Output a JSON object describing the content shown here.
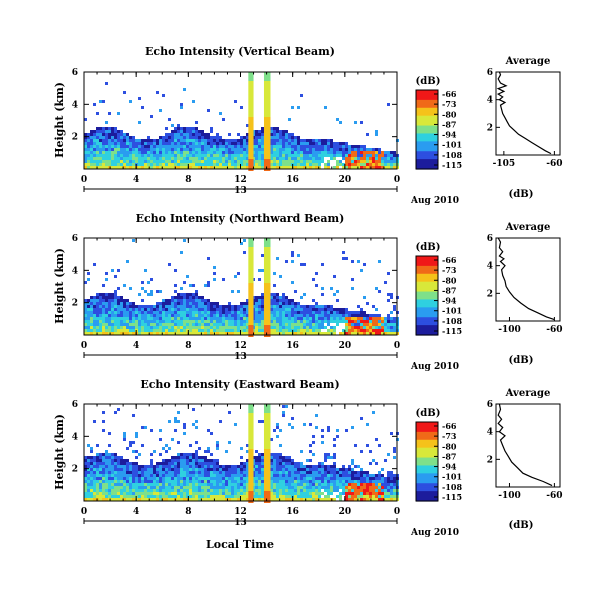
{
  "figure": {
    "xlabel": "Local Time",
    "date_label": "Aug 2010",
    "day_label": "13"
  },
  "colorbar": {
    "unit": "(dB)",
    "ticks": [
      "-66",
      "-73",
      "-80",
      "-87",
      "-94",
      "-101",
      "-108",
      "-115"
    ],
    "colors": [
      "#f01818",
      "#f06a18",
      "#f5c21a",
      "#d8e83a",
      "#7ee08a",
      "#2fd0e0",
      "#2a9cf0",
      "#2d4fe0",
      "#1c1c9c"
    ]
  },
  "chart_data": [
    {
      "type": "heatmap",
      "title": "Echo Intensity (Vertical Beam)",
      "ylabel": "Height (km)",
      "x_ticks": [
        "0",
        "4",
        "8",
        "12",
        "16",
        "20",
        "0"
      ],
      "y_ticks": [
        "6",
        "4",
        "2"
      ],
      "xlim": [
        0,
        24
      ],
      "ylim": [
        0,
        6
      ],
      "avg": {
        "title": "Average",
        "xlabel": "(dB)",
        "x_ticks": [
          "-105",
          "-60"
        ],
        "y_ticks": [
          "6",
          "4",
          "2"
        ],
        "xlim": [
          -112,
          -55
        ],
        "profile": [
          [
            -63,
            0.1
          ],
          [
            -68,
            0.3
          ],
          [
            -74,
            0.6
          ],
          [
            -80,
            0.9
          ],
          [
            -86,
            1.2
          ],
          [
            -92,
            1.5
          ],
          [
            -96,
            1.8
          ],
          [
            -100,
            2.1
          ],
          [
            -102,
            2.4
          ],
          [
            -104,
            2.7
          ],
          [
            -106,
            3.0
          ],
          [
            -107,
            3.3
          ],
          [
            -108,
            3.6
          ],
          [
            -104,
            3.8
          ],
          [
            -109,
            4.0
          ],
          [
            -106,
            4.2
          ],
          [
            -110,
            4.4
          ],
          [
            -105,
            4.6
          ],
          [
            -110,
            4.8
          ],
          [
            -103,
            5.0
          ],
          [
            -108,
            5.2
          ],
          [
            -110,
            5.5
          ],
          [
            -108,
            5.8
          ],
          [
            -109,
            6.0
          ]
        ]
      }
    },
    {
      "type": "heatmap",
      "title": "Echo Intensity (Northward Beam)",
      "ylabel": "Height (km)",
      "x_ticks": [
        "0",
        "4",
        "8",
        "12",
        "16",
        "20",
        "0"
      ],
      "y_ticks": [
        "6",
        "4",
        "2"
      ],
      "xlim": [
        0,
        24
      ],
      "ylim": [
        0,
        6
      ],
      "avg": {
        "title": "Average",
        "xlabel": "(dB)",
        "x_ticks": [
          "-100",
          "-60"
        ],
        "y_ticks": [
          "6",
          "4",
          "2"
        ],
        "xlim": [
          -112,
          -55
        ],
        "profile": [
          [
            -60,
            0.1
          ],
          [
            -67,
            0.3
          ],
          [
            -75,
            0.6
          ],
          [
            -83,
            0.9
          ],
          [
            -90,
            1.3
          ],
          [
            -96,
            1.7
          ],
          [
            -100,
            2.1
          ],
          [
            -103,
            2.5
          ],
          [
            -104,
            2.9
          ],
          [
            -106,
            3.3
          ],
          [
            -107,
            3.7
          ],
          [
            -104,
            4.0
          ],
          [
            -108,
            4.3
          ],
          [
            -105,
            4.5
          ],
          [
            -109,
            4.7
          ],
          [
            -106,
            5.0
          ],
          [
            -109,
            5.3
          ],
          [
            -108,
            5.7
          ],
          [
            -110,
            6.0
          ]
        ]
      }
    },
    {
      "type": "heatmap",
      "title": "Echo Intensity (Eastward Beam)",
      "ylabel": "Height (km)",
      "x_ticks": [
        "0",
        "4",
        "8",
        "12",
        "16",
        "20",
        "0"
      ],
      "y_ticks": [
        "6",
        "4",
        "2"
      ],
      "xlim": [
        0,
        24
      ],
      "ylim": [
        0,
        6
      ],
      "avg": {
        "title": "Average",
        "xlabel": "(dB)",
        "x_ticks": [
          "-100",
          "-60"
        ],
        "y_ticks": [
          "6",
          "4",
          "2"
        ],
        "xlim": [
          -112,
          -55
        ],
        "profile": [
          [
            -62,
            0.1
          ],
          [
            -70,
            0.4
          ],
          [
            -80,
            0.7
          ],
          [
            -88,
            1.0
          ],
          [
            -93,
            1.4
          ],
          [
            -98,
            1.8
          ],
          [
            -101,
            2.2
          ],
          [
            -104,
            2.6
          ],
          [
            -106,
            3.0
          ],
          [
            -108,
            3.4
          ],
          [
            -104,
            3.7
          ],
          [
            -109,
            4.0
          ],
          [
            -106,
            4.3
          ],
          [
            -110,
            4.6
          ],
          [
            -107,
            4.9
          ],
          [
            -110,
            5.2
          ],
          [
            -108,
            5.6
          ],
          [
            -109,
            6.0
          ]
        ]
      }
    }
  ]
}
